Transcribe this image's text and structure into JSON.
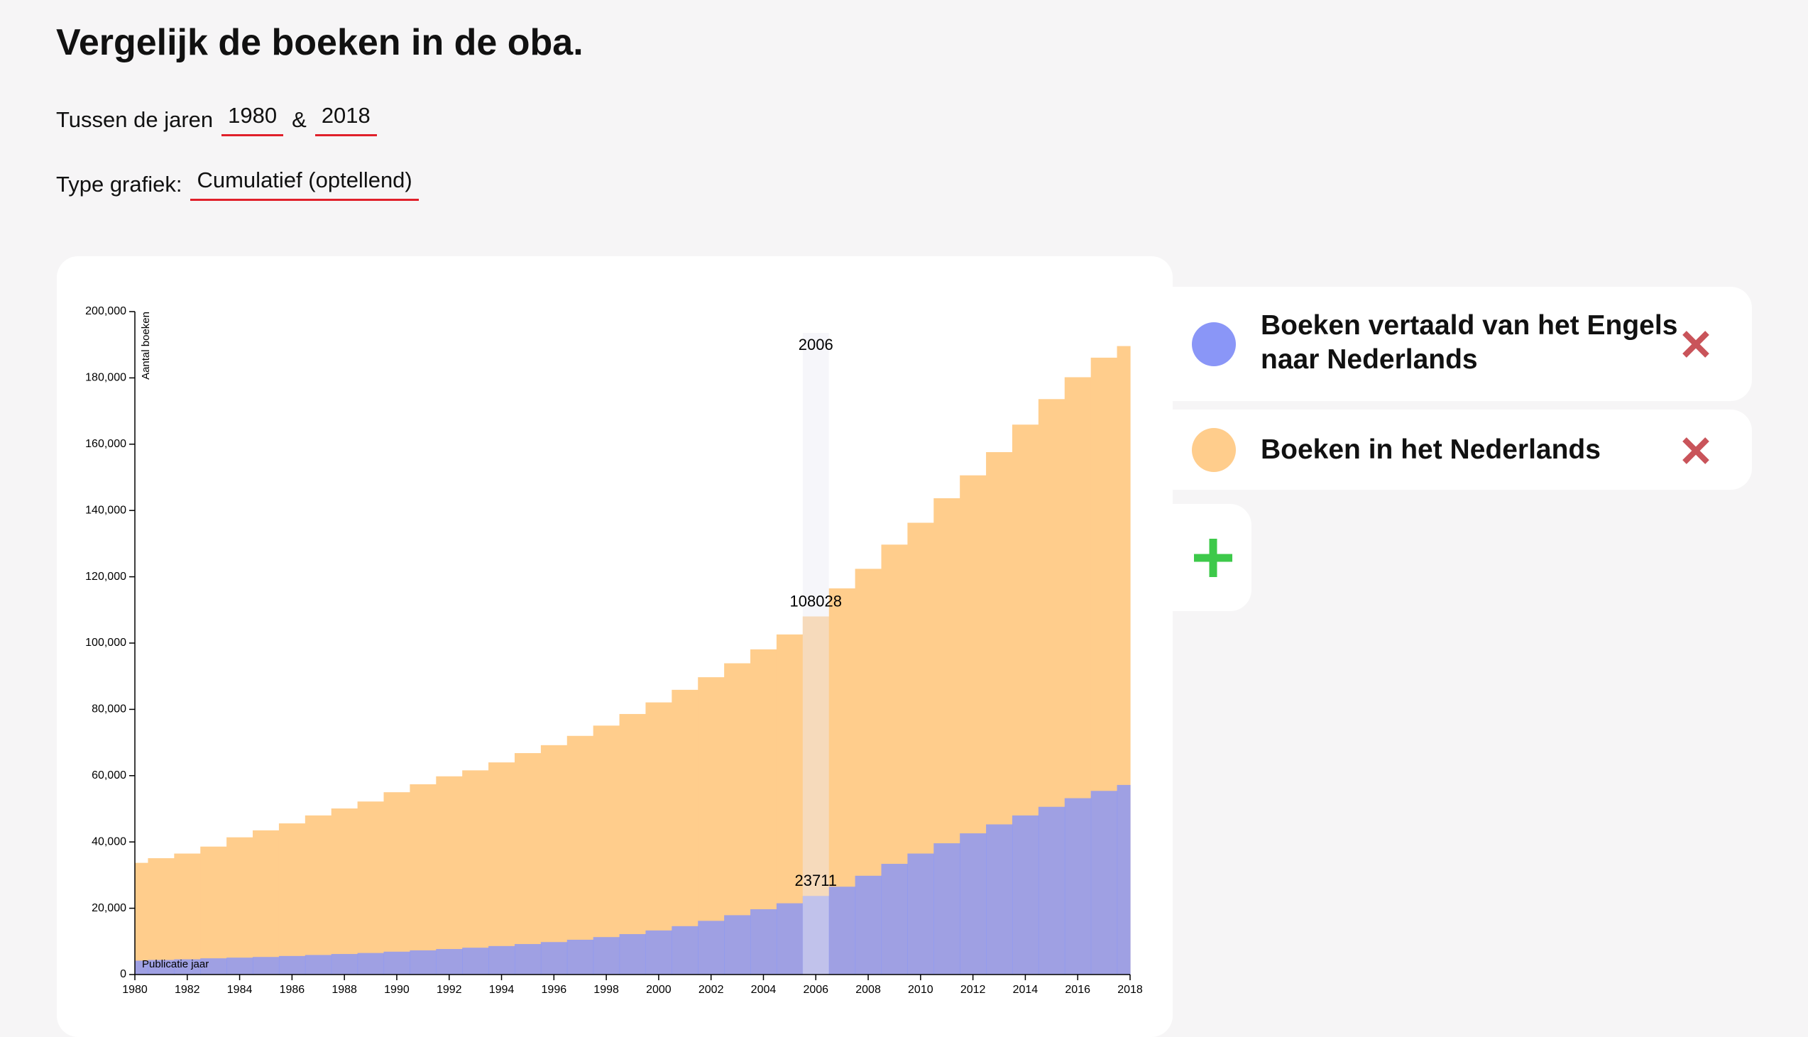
{
  "page": {
    "title": "Vergelijk de boeken in de oba.",
    "range_label": "Tussen de jaren",
    "from": "1980",
    "and": "&",
    "to": "2018",
    "type_label": "Type grafiek:",
    "type_value": "Cumulatief (optellend)"
  },
  "chart_data": {
    "type": "step-area",
    "x": [
      1980,
      1981,
      1982,
      1983,
      1984,
      1985,
      1986,
      1987,
      1988,
      1989,
      1990,
      1991,
      1992,
      1993,
      1994,
      1995,
      1996,
      1997,
      1998,
      1999,
      2000,
      2001,
      2002,
      2003,
      2004,
      2005,
      2006,
      2007,
      2008,
      2009,
      2010,
      2011,
      2012,
      2013,
      2014,
      2015,
      2016,
      2017,
      2018
    ],
    "series": [
      {
        "name": "Boeken in het Nederlands",
        "color": "#ffcd8c",
        "values": [
          33700,
          35100,
          36500,
          38600,
          41400,
          43500,
          45600,
          48000,
          50100,
          52200,
          55000,
          57400,
          59800,
          61600,
          64000,
          66800,
          69200,
          72000,
          75100,
          78600,
          82100,
          85900,
          89700,
          93900,
          98100,
          102600,
          108028,
          116500,
          122400,
          129700,
          136300,
          143700,
          150600,
          157600,
          165900,
          173600,
          180200,
          186100,
          189600
        ]
      },
      {
        "name": "Boeken vertaald van het Engels naar Nederlands",
        "color": "#8a96f7",
        "values": [
          4200,
          4400,
          4600,
          4900,
          5100,
          5300,
          5600,
          5900,
          6200,
          6500,
          6900,
          7300,
          7700,
          8100,
          8600,
          9200,
          9800,
          10500,
          11300,
          12200,
          13300,
          14600,
          16200,
          17900,
          19700,
          21500,
          23711,
          26500,
          29800,
          33400,
          36500,
          39600,
          42600,
          45300,
          48000,
          50600,
          53200,
          55400,
          57200
        ]
      }
    ],
    "xlim": [
      1980,
      2018
    ],
    "xticks": [
      1980,
      1982,
      1984,
      1986,
      1988,
      1990,
      1992,
      1994,
      1996,
      1998,
      2000,
      2002,
      2004,
      2006,
      2008,
      2010,
      2012,
      2014,
      2016,
      2018
    ],
    "ylim": [
      0,
      200000
    ],
    "yticks": [
      0,
      {
        "value": 20000,
        "label": "20,000"
      },
      {
        "value": 40000,
        "label": "40,000"
      },
      {
        "value": 60000,
        "label": "60,000"
      },
      {
        "value": 80000,
        "label": "80,000"
      },
      {
        "value": 100000,
        "label": "100,000"
      },
      {
        "value": 120000,
        "label": "120,000"
      },
      {
        "value": 140000,
        "label": "140,000"
      },
      {
        "value": 160000,
        "label": "160,000"
      },
      {
        "value": 180000,
        "label": "180,000"
      },
      {
        "value": 200000,
        "label": "200,000"
      }
    ],
    "y_label": "Aantal boeken",
    "x_label": "Publicatie jaar",
    "hover": 2006
  }
}
